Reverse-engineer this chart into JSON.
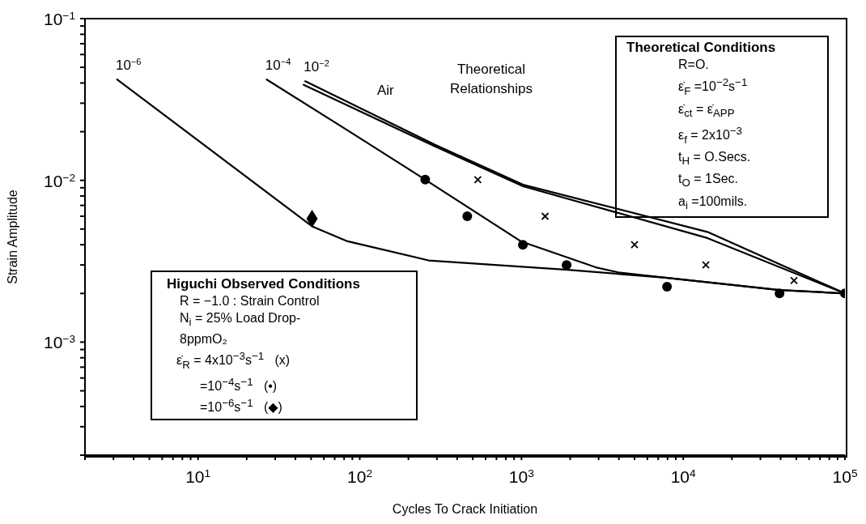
{
  "chart_data": {
    "type": "line",
    "xlabel": "Cycles To Crack Initiation",
    "ylabel": "Strain Amplitude",
    "log": "xy",
    "xlim": [
      2,
      100000
    ],
    "ylim": [
      0.0002,
      0.1
    ],
    "xticks": [
      {
        "value": 2,
        "label": null
      },
      {
        "value": 3,
        "label": null
      },
      {
        "value": 4,
        "label": null
      },
      {
        "value": 5,
        "label": null
      },
      {
        "value": 6,
        "label": null
      },
      {
        "value": 7,
        "label": null
      },
      {
        "value": 8,
        "label": null
      },
      {
        "value": 9,
        "label": null
      },
      {
        "value": 10,
        "label": "10$^{1}$"
      },
      {
        "value": 20,
        "label": null
      },
      {
        "value": 30,
        "label": null
      },
      {
        "value": 40,
        "label": null
      },
      {
        "value": 50,
        "label": null
      },
      {
        "value": 60,
        "label": null
      },
      {
        "value": 70,
        "label": null
      },
      {
        "value": 80,
        "label": null
      },
      {
        "value": 90,
        "label": null
      },
      {
        "value": 100,
        "label": "10$^{2}$"
      },
      {
        "value": 200,
        "label": null
      },
      {
        "value": 300,
        "label": null
      },
      {
        "value": 400,
        "label": null
      },
      {
        "value": 500,
        "label": null
      },
      {
        "value": 600,
        "label": null
      },
      {
        "value": 700,
        "label": null
      },
      {
        "value": 800,
        "label": null
      },
      {
        "value": 900,
        "label": null
      },
      {
        "value": 1000,
        "label": "10$^{3}$"
      },
      {
        "value": 2000,
        "label": null
      },
      {
        "value": 3000,
        "label": null
      },
      {
        "value": 4000,
        "label": null
      },
      {
        "value": 5000,
        "label": null
      },
      {
        "value": 6000,
        "label": null
      },
      {
        "value": 7000,
        "label": null
      },
      {
        "value": 8000,
        "label": null
      },
      {
        "value": 9000,
        "label": null
      },
      {
        "value": 10000,
        "label": "10$^{4}$"
      },
      {
        "value": 20000,
        "label": null
      },
      {
        "value": 30000,
        "label": null
      },
      {
        "value": 40000,
        "label": null
      },
      {
        "value": 50000,
        "label": null
      },
      {
        "value": 60000,
        "label": null
      },
      {
        "value": 70000,
        "label": null
      },
      {
        "value": 80000,
        "label": null
      },
      {
        "value": 90000,
        "label": null
      },
      {
        "value": 100000,
        "label": "10$^{5}$"
      }
    ],
    "yticks": [
      {
        "value": 0.0002,
        "label": null
      },
      {
        "value": 0.0003,
        "label": null
      },
      {
        "value": 0.0004,
        "label": null
      },
      {
        "value": 0.0005,
        "label": null
      },
      {
        "value": 0.0006,
        "label": null
      },
      {
        "value": 0.0007,
        "label": null
      },
      {
        "value": 0.0008,
        "label": null
      },
      {
        "value": 0.0009,
        "label": null
      },
      {
        "value": 0.001,
        "label": "10$^{−3}$"
      },
      {
        "value": 0.002,
        "label": null
      },
      {
        "value": 0.003,
        "label": null
      },
      {
        "value": 0.004,
        "label": null
      },
      {
        "value": 0.005,
        "label": null
      },
      {
        "value": 0.006,
        "label": null
      },
      {
        "value": 0.007,
        "label": null
      },
      {
        "value": 0.008,
        "label": null
      },
      {
        "value": 0.009,
        "label": null
      },
      {
        "value": 0.01,
        "label": "10$^{−2}$"
      },
      {
        "value": 0.02,
        "label": null
      },
      {
        "value": 0.03,
        "label": null
      },
      {
        "value": 0.04,
        "label": null
      },
      {
        "value": 0.05,
        "label": null
      },
      {
        "value": 0.06,
        "label": null
      },
      {
        "value": 0.07,
        "label": null
      },
      {
        "value": 0.08,
        "label": null
      },
      {
        "value": 0.09,
        "label": null
      },
      {
        "value": 0.1,
        "label": "10$^{−1}$"
      }
    ],
    "series": [
      {
        "name": "10$^{−6}$",
        "color": "#000000",
        "marker": "none",
        "line_style": "solid",
        "x": [
          3.16,
          50.7,
          84,
          266,
          1930,
          7760,
          39400,
          100000
        ],
        "values": [
          0.042,
          0.0052,
          0.0042,
          0.0032,
          0.0028,
          0.0025,
          0.0021,
          0.002
        ]
      },
      {
        "name": "10$^{−4}$",
        "color": "#000000",
        "marker": "none",
        "line_style": "solid",
        "x": [
          26.6,
          84,
          254,
          990,
          2880,
          3960,
          7760,
          39400,
          100000
        ],
        "values": [
          0.042,
          0.0204,
          0.0101,
          0.0042,
          0.0029,
          0.0027,
          0.0025,
          0.0021,
          0.002
        ]
      },
      {
        "name": "10$^{−2}$",
        "color": "#000000",
        "marker": "none",
        "line_style": "solid",
        "x": [
          46,
          292,
          1023,
          14100,
          100000
        ],
        "values": [
          0.041,
          0.0166,
          0.0094,
          0.0048,
          0.002
        ]
      },
      {
        "name": "Air",
        "color": "#000000",
        "marker": "none",
        "line_style": "solid",
        "x": [
          45,
          292,
          1023,
          14100,
          100000
        ],
        "values": [
          0.039,
          0.0162,
          0.0092,
          0.0044,
          0.002
        ]
      },
      {
        "type": "scatter",
        "color": "#000000",
        "marker": "cross",
        "x": [
          537,
          1400,
          5000,
          13800,
          48400
        ],
        "values": [
          0.0101,
          0.006,
          0.004,
          0.003,
          0.0024
        ]
      },
      {
        "type": "scatter",
        "color": "#000000",
        "marker": "circle",
        "x": [
          254,
          462,
          1020,
          1900,
          7940,
          39400,
          100000
        ],
        "values": [
          0.0101,
          0.006,
          0.004,
          0.003,
          0.0022,
          0.002,
          0.002
        ]
      },
      {
        "type": "scatter",
        "color": "#000000",
        "marker": "diamond",
        "x": [
          50.7
        ],
        "values": [
          0.0058
        ]
      }
    ],
    "annotations": [
      "Theoretical Relationships",
      "Theoretical Conditions",
      "R=O.",
      "ε̇$_{F}$ =10$^{−2}$s$^{−1}$",
      "ε̇$_{ct}$ = ε̇$_{APP}$",
      "ε$_{f}$ = 2x10$^{−3}$",
      "t$_{H}$ = O.Secs.",
      "t$_{O}$ = 1Sec.",
      "a$_{i}$ =100mils.",
      "Higuchi Observed Conditions",
      "R = −1.0 : Strain Control",
      "N$_{i}$ = 25% Load Drop-",
      "8ppmO₂",
      "ε̇$_{R}$ = 4x10$^{−3}$s$^{−1}$   (x)",
      "=10$^{−4}$s$^{−1}$   (•)",
      "=10$^{−6}$s$^{−1}$   (◆)"
    ]
  }
}
